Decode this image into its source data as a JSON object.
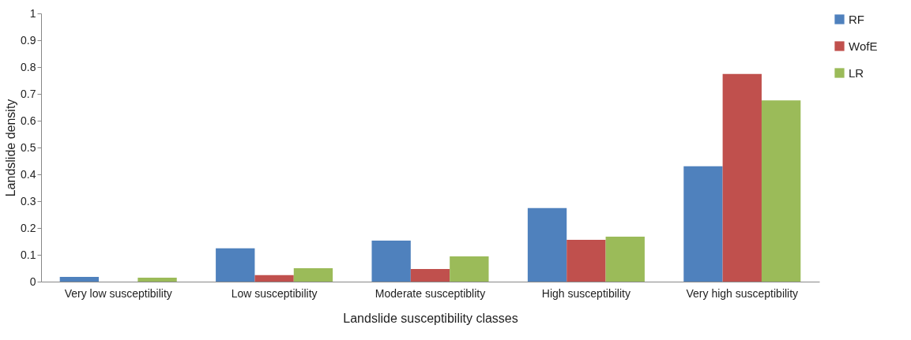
{
  "chart_data": {
    "type": "bar",
    "xlabel": "Landslide susceptibility classes",
    "ylabel": "Landslide density",
    "categories": [
      "Very low susceptibility",
      "Low susceptibility",
      "Moderate susceptiblity",
      "High susceptibility",
      "Very high susceptibility"
    ],
    "series": [
      {
        "name": "RF",
        "color": "#4f81bd",
        "values": [
          0.018,
          0.124,
          0.153,
          0.274,
          0.43
        ]
      },
      {
        "name": "WofE",
        "color": "#c0504d",
        "values": [
          0,
          0.024,
          0.047,
          0.156,
          0.774
        ]
      },
      {
        "name": "LR",
        "color": "#9bbb59",
        "values": [
          0.015,
          0.05,
          0.094,
          0.168,
          0.676
        ]
      }
    ],
    "ylim": [
      0,
      1
    ],
    "yticks": [
      0,
      0.1,
      0.2,
      0.3,
      0.4,
      0.5,
      0.6,
      0.7,
      0.8,
      0.9,
      1
    ],
    "grid": false,
    "legend": "right"
  }
}
